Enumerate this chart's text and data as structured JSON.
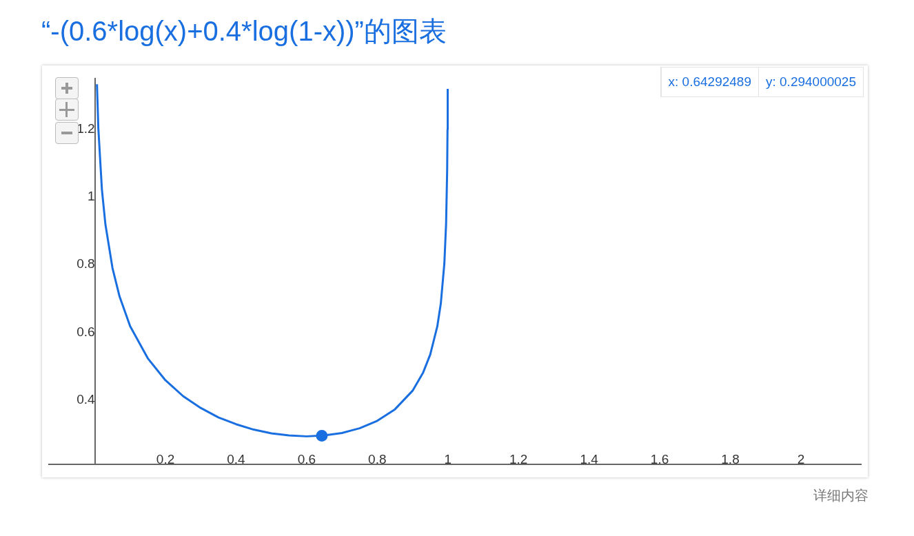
{
  "chart_data": {
    "type": "line",
    "title": "“-(0.6*log(x)+0.4*log(1-x))”的图表",
    "series": [
      {
        "color": "#1a6fe0",
        "marker": "none",
        "line_style": "solid",
        "x": [
          0.006,
          0.01,
          0.02,
          0.03,
          0.05,
          0.07,
          0.1,
          0.15,
          0.2,
          0.25,
          0.3,
          0.35,
          0.4,
          0.45,
          0.5,
          0.55,
          0.6,
          0.65,
          0.7,
          0.75,
          0.8,
          0.85,
          0.9,
          0.93,
          0.95,
          0.97,
          0.98,
          0.99,
          0.995,
          0.998,
          0.999,
          0.9995
        ],
        "values": [
          1.334,
          1.202,
          1.023,
          0.919,
          0.79,
          0.706,
          0.618,
          0.523,
          0.458,
          0.411,
          0.376,
          0.348,
          0.328,
          0.312,
          0.301,
          0.295,
          0.292,
          0.295,
          0.302,
          0.316,
          0.338,
          0.372,
          0.427,
          0.481,
          0.534,
          0.617,
          0.685,
          0.803,
          0.922,
          1.08,
          1.2,
          1.32
        ]
      },
      {
        "type": "scatter",
        "color": "#1a6fe0",
        "marker": "circle",
        "x": [
          0.643
        ],
        "values": [
          0.294
        ]
      }
    ],
    "xlim": [
      -0.13,
      2.17
    ],
    "ylim": [
      0.21,
      1.35
    ],
    "xticks": [
      0.2,
      0.4,
      0.6,
      0.8,
      1,
      1.2,
      1.4,
      1.6,
      1.8,
      2
    ],
    "yticks": [
      0.4,
      0.6,
      0.8,
      1,
      1.2
    ],
    "grid": false,
    "legend": false,
    "annotations": [
      "x: 0.64292489",
      "y: 0.294000025",
      "详细内容"
    ]
  }
}
